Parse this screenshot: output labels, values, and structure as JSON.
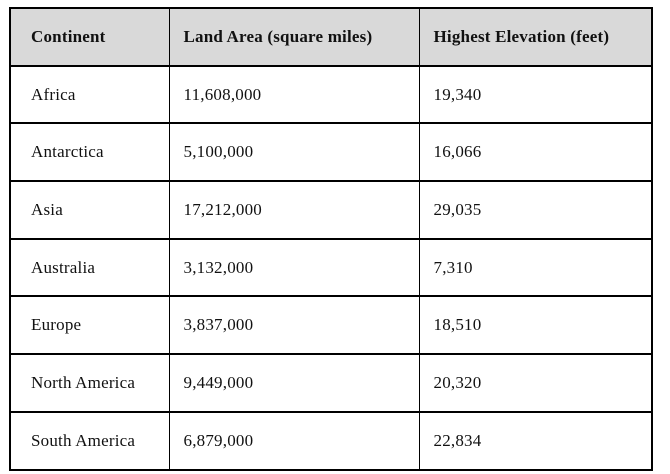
{
  "table": {
    "columns": [
      {
        "id": "continent",
        "label": "Continent"
      },
      {
        "id": "land_area",
        "label": "Land Area (square miles)"
      },
      {
        "id": "highest_elevation",
        "label": "Highest Elevation (feet)"
      }
    ],
    "rows": [
      {
        "continent": "Africa",
        "land_area": "11,608,000",
        "highest_elevation": "19,340"
      },
      {
        "continent": "Antarctica",
        "land_area": "5,100,000",
        "highest_elevation": "16,066"
      },
      {
        "continent": "Asia",
        "land_area": "17,212,000",
        "highest_elevation": "29,035"
      },
      {
        "continent": "Australia",
        "land_area": "3,132,000",
        "highest_elevation": "7,310"
      },
      {
        "continent": "Europe",
        "land_area": "3,837,000",
        "highest_elevation": "18,510"
      },
      {
        "continent": "North America",
        "land_area": "9,449,000",
        "highest_elevation": "20,320"
      },
      {
        "continent": "South America",
        "land_area": "6,879,000",
        "highest_elevation": "22,834"
      }
    ],
    "colors": {
      "header_background": "#d9d9d9",
      "border": "#000000",
      "text": "#111111",
      "page_background": "#ffffff"
    }
  }
}
